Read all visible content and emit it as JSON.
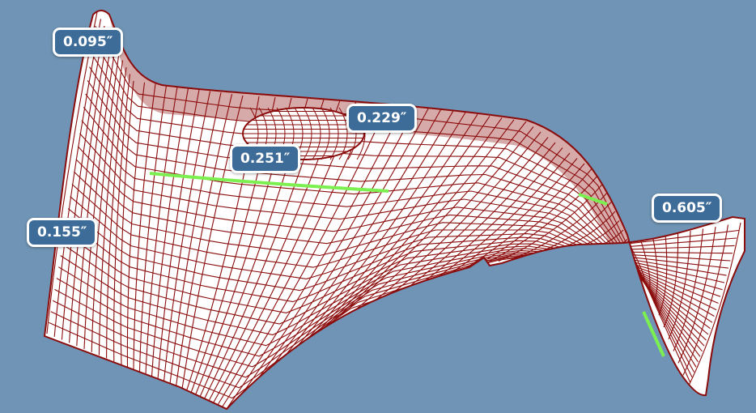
{
  "colors": {
    "background": "#7094b5",
    "surface_fill": "#ffffff",
    "mesh_line": "#8b0c0c",
    "contact_edge": "#7cf050",
    "callout_fill": "#3e6c99",
    "callout_border": "#ffffff"
  },
  "callouts": [
    {
      "id": "callout-top-left",
      "label": "0.095″"
    },
    {
      "id": "callout-center-upper",
      "label": "0.229″"
    },
    {
      "id": "callout-center",
      "label": "0.251″"
    },
    {
      "id": "callout-left",
      "label": "0.155″"
    },
    {
      "id": "callout-right",
      "label": "0.605″"
    }
  ]
}
